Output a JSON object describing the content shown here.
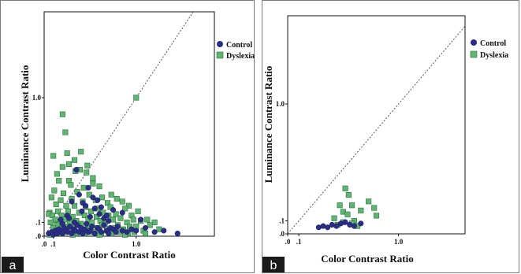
{
  "colors": {
    "control": "#2a2e86",
    "dyslexia": "#5fb572",
    "dyslexia_edge": "#2f6e3c"
  },
  "chart_data": [
    {
      "type": "scatter",
      "panel_label": "a",
      "title": "",
      "xlabel": "Color Contrast Ratio",
      "ylabel": "Luminance Contrast Ratio",
      "xlim": [
        0,
        1.85
      ],
      "ylim": [
        0,
        1.62
      ],
      "xticks": [
        {
          "value": 0,
          "label": ".0"
        },
        {
          "value": 0.1,
          "label": ".1"
        },
        {
          "value": 1.0,
          "label": "1.0"
        }
      ],
      "yticks": [
        {
          "value": 0,
          "label": ".0"
        },
        {
          "value": 0.1,
          "label": ".1"
        },
        {
          "value": 1.0,
          "label": "1.0"
        }
      ],
      "reference_line": "identity (dashed)",
      "legend": {
        "placement": "top-right",
        "entries": [
          "Control",
          "Dyslexia"
        ]
      },
      "series": [
        {
          "name": "Control",
          "marker": "circle",
          "x": [
            0.05,
            0.08,
            0.1,
            0.12,
            0.14,
            0.16,
            0.18,
            0.2,
            0.22,
            0.24,
            0.26,
            0.28,
            0.3,
            0.32,
            0.34,
            0.36,
            0.38,
            0.4,
            0.42,
            0.44,
            0.46,
            0.48,
            0.5,
            0.52,
            0.55,
            0.58,
            0.6,
            0.62,
            0.65,
            0.68,
            0.7,
            0.72,
            0.75,
            0.78,
            0.8,
            0.85,
            0.9,
            0.95,
            1.0,
            1.1,
            1.2,
            1.3,
            1.45,
            0.18,
            0.25,
            0.33,
            0.41,
            0.5,
            0.6,
            0.7,
            0.3,
            0.45,
            0.55,
            0.65,
            0.85,
            1.05,
            0.2,
            0.38,
            0.58,
            0.75,
            0.35,
            0.48,
            0.62,
            0.27,
            0.42,
            0.68,
            0.53
          ],
          "y": [
            0.02,
            0.03,
            0.01,
            0.04,
            0.02,
            0.05,
            0.03,
            0.02,
            0.06,
            0.04,
            0.03,
            0.07,
            0.02,
            0.05,
            0.04,
            0.08,
            0.03,
            0.06,
            0.02,
            0.05,
            0.09,
            0.03,
            0.04,
            0.07,
            0.02,
            0.06,
            0.05,
            0.03,
            0.08,
            0.04,
            0.02,
            0.06,
            0.05,
            0.03,
            0.07,
            0.04,
            0.03,
            0.05,
            0.04,
            0.06,
            0.03,
            0.04,
            0.02,
            0.12,
            0.15,
            0.1,
            0.18,
            0.14,
            0.16,
            0.11,
            0.25,
            0.22,
            0.2,
            0.13,
            0.17,
            0.12,
            0.09,
            0.3,
            0.26,
            0.19,
            0.48,
            0.35,
            0.21,
            0.13,
            0.24,
            0.15,
            0.28
          ]
        },
        {
          "name": "Dyslexia",
          "marker": "square",
          "x": [
            0.2,
            0.23,
            0.4,
            0.25,
            0.27,
            1.0,
            0.06,
            0.1,
            0.2,
            0.34,
            0.47,
            0.53,
            0.33,
            0.14,
            0.39,
            0.53,
            0.27,
            0.46,
            0.16,
            0.29,
            0.43,
            0.6,
            0.73,
            0.85,
            0.11,
            0.21,
            0.36,
            0.49,
            0.63,
            0.79,
            0.92,
            0.08,
            0.18,
            0.3,
            0.42,
            0.56,
            0.69,
            0.88,
            1.02,
            0.13,
            0.24,
            0.33,
            0.45,
            0.58,
            0.72,
            0.95,
            1.12,
            0.05,
            0.15,
            0.26,
            0.38,
            0.51,
            0.64,
            0.78,
            1.2,
            0.09,
            0.19,
            0.31,
            0.44,
            0.57,
            0.7,
            0.83,
            0.97,
            1.05,
            0.12,
            0.22,
            0.35,
            0.48,
            0.61,
            0.75,
            0.9,
            1.15,
            0.07,
            0.17,
            0.28,
            0.4,
            0.52,
            0.66,
            0.8,
            1.0,
            0.14,
            0.25,
            0.37,
            0.5,
            0.63,
            0.77,
            0.93,
            1.25,
            0.1,
            0.2,
            0.32,
            0.45,
            0.58,
            0.71,
            0.86,
            1.08,
            0.16,
            0.29,
            0.41,
            0.55,
            0.68,
            0.82,
            0.98,
            0.13,
            0.23,
            0.36,
            0.49,
            0.62,
            0.76,
            0.91,
            1.1,
            0.06,
            0.19,
            0.31,
            0.44,
            0.6,
            0.73,
            0.88
          ],
          "y": [
            0.88,
            0.75,
            0.61,
            0.6,
            0.52,
            1.0,
            0.17,
            0.58,
            0.5,
            0.47,
            0.51,
            0.38,
            0.55,
            0.45,
            0.48,
            0.42,
            0.4,
            0.46,
            0.4,
            0.37,
            0.35,
            0.36,
            0.3,
            0.25,
            0.33,
            0.31,
            0.32,
            0.3,
            0.28,
            0.27,
            0.22,
            0.28,
            0.26,
            0.27,
            0.25,
            0.26,
            0.24,
            0.2,
            0.18,
            0.23,
            0.22,
            0.22,
            0.21,
            0.2,
            0.21,
            0.15,
            0.12,
            0.16,
            0.18,
            0.18,
            0.17,
            0.18,
            0.17,
            0.16,
            0.1,
            0.15,
            0.15,
            0.14,
            0.15,
            0.14,
            0.15,
            0.13,
            0.12,
            0.11,
            0.12,
            0.12,
            0.11,
            0.12,
            0.11,
            0.12,
            0.1,
            0.08,
            0.1,
            0.09,
            0.1,
            0.09,
            0.1,
            0.09,
            0.08,
            0.07,
            0.08,
            0.07,
            0.08,
            0.07,
            0.08,
            0.06,
            0.07,
            0.05,
            0.06,
            0.05,
            0.06,
            0.05,
            0.06,
            0.05,
            0.05,
            0.04,
            0.04,
            0.04,
            0.04,
            0.03,
            0.04,
            0.03,
            0.03,
            0.02,
            0.03,
            0.02,
            0.03,
            0.02,
            0.03,
            0.02,
            0.02,
            0.01,
            0.02,
            0.01,
            0.02,
            0.01,
            0.02,
            0.01
          ]
        }
      ]
    },
    {
      "type": "scatter",
      "panel_label": "b",
      "title": "",
      "xlabel": "Color Contrast Ratio",
      "ylabel": "Luminance Contrast Ratio",
      "xlim": [
        0,
        1.6
      ],
      "ylim": [
        0,
        1.68
      ],
      "xticks": [
        {
          "value": 0,
          "label": ".0"
        },
        {
          "value": 0.1,
          "label": ".1"
        },
        {
          "value": 1.0,
          "label": "1.0"
        }
      ],
      "yticks": [
        {
          "value": 0,
          "label": ".0"
        },
        {
          "value": 0.1,
          "label": ".1"
        },
        {
          "value": 1.0,
          "label": "1.0"
        }
      ],
      "reference_line": "identity (dashed)",
      "legend": {
        "placement": "top-right",
        "entries": [
          "Control",
          "Dyslexia"
        ]
      },
      "series": [
        {
          "name": "Control",
          "marker": "circle",
          "x": [
            0.28,
            0.32,
            0.36,
            0.4,
            0.44,
            0.48,
            0.52,
            0.56,
            0.6,
            0.66
          ],
          "y": [
            0.05,
            0.06,
            0.05,
            0.07,
            0.06,
            0.08,
            0.09,
            0.07,
            0.06,
            0.08
          ]
        },
        {
          "name": "Dyslexia",
          "marker": "square",
          "x": [
            0.52,
            0.55,
            0.58,
            0.47,
            0.5,
            0.54,
            0.42,
            0.6,
            0.66,
            0.73,
            0.78,
            0.8,
            0.58,
            0.5,
            0.45,
            0.63
          ],
          "y": [
            0.35,
            0.3,
            0.22,
            0.22,
            0.17,
            0.15,
            0.12,
            0.1,
            0.18,
            0.25,
            0.2,
            0.14,
            0.08,
            0.09,
            0.07,
            0.06
          ]
        }
      ]
    }
  ]
}
